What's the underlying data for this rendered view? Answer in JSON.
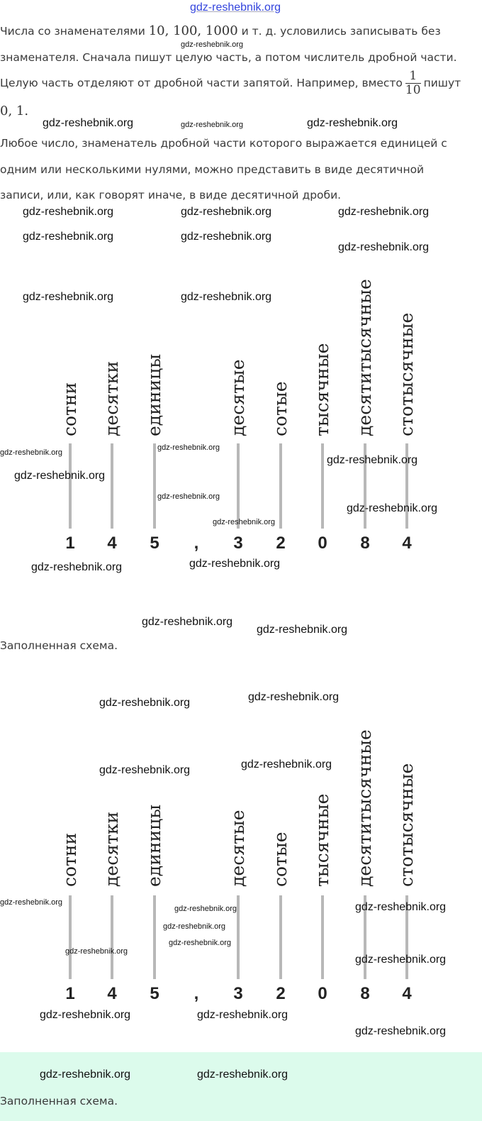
{
  "watermark": "gdz-reshebnik.org",
  "paragraph1": {
    "line1_a": "Числа со знаменателями ",
    "line1_math": "10, 100, 1000",
    "line1_b": " и т. д. условились записывать без",
    "line2": "знаменателя. Сначала пишут целую часть, а потом числитель дробной части.",
    "line3_a": "Целую часть отделяют от дробной части запятой. Например, вместо",
    "frac_num": "1",
    "frac_den": "10",
    "line3_b": "пишут",
    "line4_math": "0, 1."
  },
  "paragraph2": {
    "line1": "Любое число, знаменатель дробной части которого выражается единицей с",
    "line2": "одним или несколькими нулями, можно представить в виде десятичной",
    "line3": "записи, или, как говорят иначе, в виде десятичной дроби."
  },
  "diagram": {
    "columns": [
      {
        "label": "сотни",
        "digit": "1"
      },
      {
        "label": "десятки",
        "digit": "4"
      },
      {
        "label": "единицы",
        "digit": "5"
      },
      {
        "label": "",
        "digit": ","
      },
      {
        "label": "десятые",
        "digit": "3"
      },
      {
        "label": "сотые",
        "digit": "2"
      },
      {
        "label": "тысячные",
        "digit": "0"
      },
      {
        "label": "десятитысячные",
        "digit": "8"
      },
      {
        "label": "стотысячные",
        "digit": "4"
      }
    ]
  },
  "caption": "Заполненная схема.",
  "colors": {
    "highlight_band": "#dcfbec",
    "line": "#b8b8b8",
    "watermark_link": "#3344dd"
  }
}
